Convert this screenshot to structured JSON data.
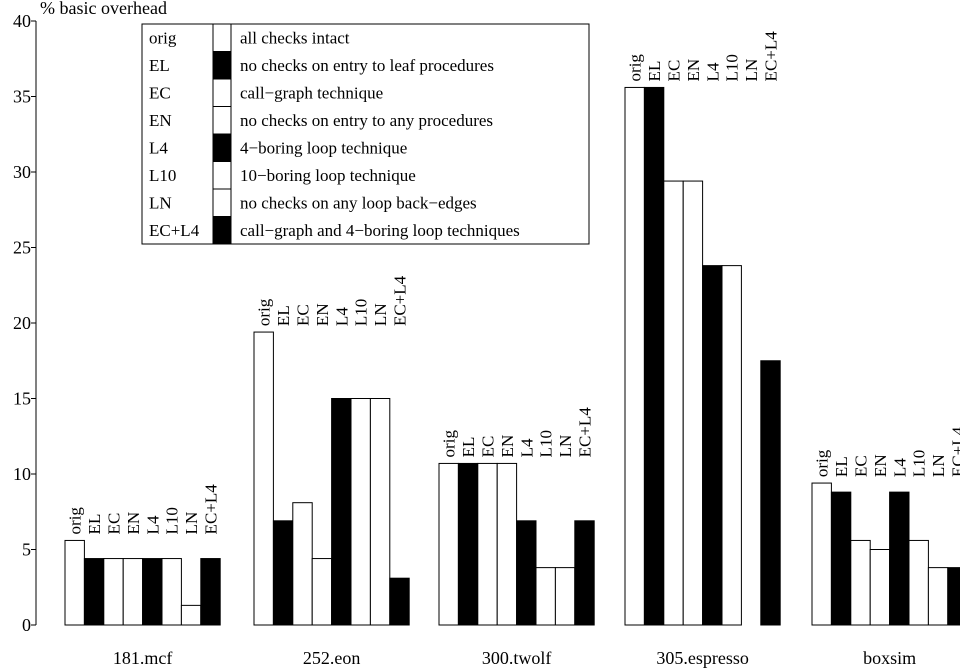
{
  "chart_data": {
    "type": "bar",
    "ylabel": "% basic overhead",
    "ylim": [
      0,
      40
    ],
    "yticks": [
      0,
      5,
      10,
      15,
      20,
      25,
      30,
      35,
      40
    ],
    "grid": false,
    "legend_position": "top-left",
    "categories": [
      "181.mcf",
      "252.eon",
      "300.twolf",
      "305.espresso",
      "boxsim"
    ],
    "series": [
      {
        "name": "orig",
        "fill": "white",
        "values": [
          5.6,
          19.4,
          10.7,
          35.6,
          9.4
        ]
      },
      {
        "name": "EL",
        "fill": "black",
        "values": [
          4.4,
          6.9,
          10.7,
          35.6,
          8.8
        ]
      },
      {
        "name": "EC",
        "fill": "white",
        "values": [
          4.4,
          8.1,
          10.7,
          29.4,
          5.6
        ]
      },
      {
        "name": "EN",
        "fill": "white",
        "values": [
          4.4,
          4.4,
          10.7,
          29.4,
          5.0
        ]
      },
      {
        "name": "L4",
        "fill": "black",
        "values": [
          4.4,
          15.0,
          6.9,
          23.8,
          8.8
        ]
      },
      {
        "name": "L10",
        "fill": "white",
        "values": [
          4.4,
          15.0,
          3.8,
          23.8,
          5.6
        ]
      },
      {
        "name": "LN",
        "fill": "white",
        "values": [
          1.3,
          15.0,
          3.8,
          0,
          3.8
        ]
      },
      {
        "name": "EC+L4",
        "fill": "black",
        "values": [
          4.4,
          3.1,
          6.9,
          17.5,
          3.8
        ]
      }
    ],
    "legend": [
      {
        "key": "orig",
        "fill": "white",
        "desc": "all checks intact"
      },
      {
        "key": "EL",
        "fill": "black",
        "desc": "no checks on entry to leaf procedures"
      },
      {
        "key": "EC",
        "fill": "white",
        "desc": "call−graph technique"
      },
      {
        "key": "EN",
        "fill": "white",
        "desc": "no checks on entry to any procedures"
      },
      {
        "key": "L4",
        "fill": "black",
        "desc": "4−boring loop technique"
      },
      {
        "key": "L10",
        "fill": "white",
        "desc": "10−boring loop technique"
      },
      {
        "key": "LN",
        "fill": "white",
        "desc": "no checks on any loop back−edges"
      },
      {
        "key": "EC+L4",
        "fill": "black",
        "desc": "call−graph and 4−boring loop techniques"
      }
    ]
  }
}
